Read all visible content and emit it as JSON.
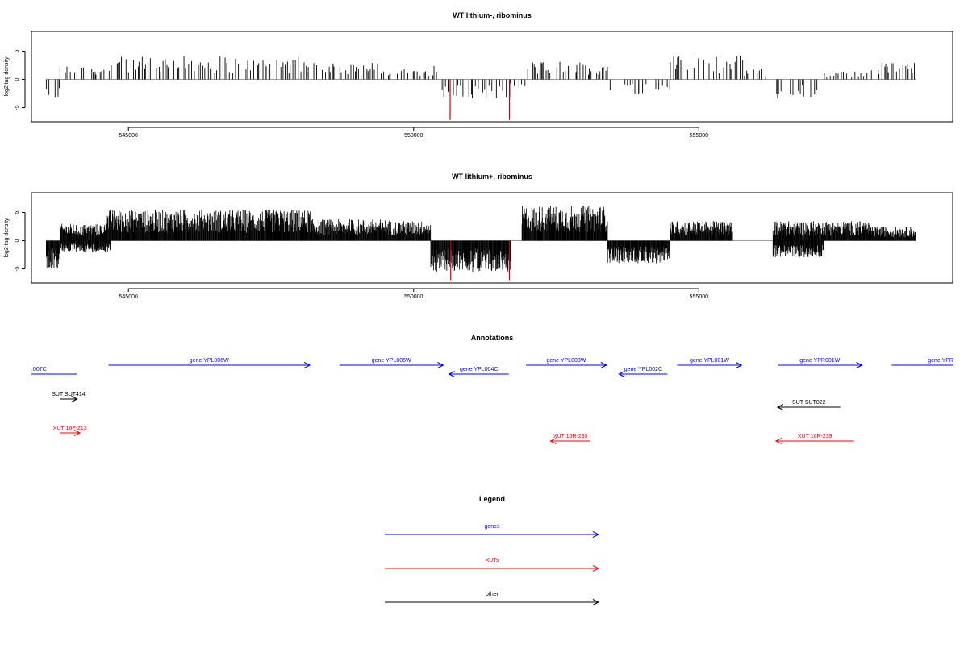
{
  "chart_data": [
    {
      "type": "bar",
      "title": "WT lithium-, ribominus",
      "ylabel": "log2 tag density",
      "xlim": [
        543300,
        559450
      ],
      "ylim": [
        -7.5,
        8.5
      ],
      "x_ticks": [
        545000,
        550000,
        555000
      ],
      "x_tick_labels": [
        "545000",
        "550000",
        "555000"
      ],
      "y_ticks": [
        -5,
        0,
        5
      ],
      "y_tick_labels": [
        "-5",
        "0",
        "5"
      ],
      "baseline": 0,
      "grid": false,
      "bar_color": "#000000",
      "highlight_color": "#cc0000",
      "density": "sparse",
      "segments": [
        {
          "start": 543560,
          "end": 543800,
          "sign": -1,
          "max": 3.6
        },
        {
          "start": 543800,
          "end": 544700,
          "sign": 1,
          "max": 2.4
        },
        {
          "start": 544700,
          "end": 545400,
          "sign": 1,
          "max": 4.0
        },
        {
          "start": 545400,
          "end": 547000,
          "sign": 1,
          "max": 4.2
        },
        {
          "start": 547000,
          "end": 548300,
          "sign": 1,
          "max": 4.0
        },
        {
          "start": 548300,
          "end": 549500,
          "sign": 1,
          "max": 3.0
        },
        {
          "start": 549500,
          "end": 550500,
          "sign": 1,
          "max": 2.4
        },
        {
          "start": 550500,
          "end": 551700,
          "sign": -1,
          "max": 3.3
        },
        {
          "start": 551700,
          "end": 552000,
          "sign": -1,
          "max": 1.5
        },
        {
          "start": 552000,
          "end": 553400,
          "sign": 1,
          "max": 3.2
        },
        {
          "start": 553400,
          "end": 554500,
          "sign": -1,
          "max": 3.0
        },
        {
          "start": 554500,
          "end": 555800,
          "sign": 1,
          "max": 4.2
        },
        {
          "start": 555800,
          "end": 556200,
          "sign": 1,
          "max": 2.2
        },
        {
          "start": 556300,
          "end": 557100,
          "sign": -1,
          "max": 3.5
        },
        {
          "start": 557200,
          "end": 558000,
          "sign": 1,
          "max": 1.6
        },
        {
          "start": 558000,
          "end": 558800,
          "sign": 1,
          "max": 3.0
        }
      ],
      "highlights": [
        {
          "x": 550640,
          "y": -7.2
        },
        {
          "x": 551680,
          "y": -7.2
        }
      ]
    },
    {
      "type": "bar",
      "title": "WT lithium+, ribominus",
      "ylabel": "log2 tag density",
      "xlim": [
        543300,
        559450
      ],
      "ylim": [
        -7.5,
        8.5
      ],
      "x_ticks": [
        545000,
        550000,
        555000
      ],
      "x_tick_labels": [
        "545000",
        "550000",
        "555000"
      ],
      "y_ticks": [
        -5,
        0,
        5
      ],
      "y_tick_labels": [
        "-5",
        "0",
        "5"
      ],
      "baseline": 0,
      "grid": false,
      "bar_color": "#000000",
      "highlight_color": "#cc0000",
      "density": "dense",
      "segments": [
        {
          "start": 543560,
          "end": 543800,
          "sign": -1,
          "max": 5.0
        },
        {
          "start": 543800,
          "end": 544700,
          "sign": -1,
          "max": 2.0
        },
        {
          "start": 543800,
          "end": 544600,
          "sign": 1,
          "max": 3.0
        },
        {
          "start": 544600,
          "end": 546500,
          "sign": 1,
          "max": 5.5
        },
        {
          "start": 546500,
          "end": 548200,
          "sign": 1,
          "max": 5.5
        },
        {
          "start": 548200,
          "end": 549600,
          "sign": 1,
          "max": 3.8
        },
        {
          "start": 549600,
          "end": 550300,
          "sign": 1,
          "max": 3.5
        },
        {
          "start": 550300,
          "end": 551700,
          "sign": -1,
          "max": 5.5
        },
        {
          "start": 551900,
          "end": 553400,
          "sign": 1,
          "max": 6.2
        },
        {
          "start": 553400,
          "end": 554500,
          "sign": -1,
          "max": 4.0
        },
        {
          "start": 554500,
          "end": 555600,
          "sign": 1,
          "max": 3.5
        },
        {
          "start": 556300,
          "end": 557200,
          "sign": -1,
          "max": 3.0
        },
        {
          "start": 556300,
          "end": 558000,
          "sign": 1,
          "max": 3.5
        },
        {
          "start": 558000,
          "end": 558800,
          "sign": 1,
          "max": 2.5
        }
      ],
      "highlights": [
        {
          "x": 550650,
          "y": -7.0
        },
        {
          "x": 551680,
          "y": -7.0
        }
      ]
    }
  ],
  "annotations": {
    "title": "Annotations",
    "features": [
      {
        "label": ".007C",
        "kind": "gene",
        "start": 543300,
        "end": 544100,
        "strand": "-",
        "row": 1
      },
      {
        "label": "gene YPL006W",
        "kind": "gene",
        "start": 544650,
        "end": 548180,
        "strand": "+",
        "row": 0
      },
      {
        "label": "gene YPL005W",
        "kind": "gene",
        "start": 548700,
        "end": 550520,
        "strand": "+",
        "row": 0
      },
      {
        "label": "gene YPL004C",
        "kind": "gene",
        "start": 550620,
        "end": 551670,
        "strand": "-",
        "row": 1
      },
      {
        "label": "gene YPL003W",
        "kind": "gene",
        "start": 551970,
        "end": 553380,
        "strand": "+",
        "row": 0
      },
      {
        "label": "gene YPL002C",
        "kind": "gene",
        "start": 553600,
        "end": 554450,
        "strand": "-",
        "row": 1
      },
      {
        "label": "gene YPL001W",
        "kind": "gene",
        "start": 554620,
        "end": 555750,
        "strand": "+",
        "row": 0
      },
      {
        "label": "gene YPR001W",
        "kind": "gene",
        "start": 556380,
        "end": 557860,
        "strand": "+",
        "row": 0
      },
      {
        "label": "gene YPR",
        "kind": "gene",
        "start": 558380,
        "end": 559450,
        "strand": "+",
        "row": 0
      },
      {
        "label": "SUT SUT414",
        "kind": "other",
        "start": 543800,
        "end": 544100,
        "strand": "+",
        "row": 2
      },
      {
        "label": "SUT SUT822",
        "kind": "other",
        "start": 556380,
        "end": 557480,
        "strand": "-",
        "row": 3
      },
      {
        "label": "XUT 16F-213",
        "kind": "xut",
        "start": 543800,
        "end": 544150,
        "strand": "+",
        "row": 4
      },
      {
        "label": "XUT 16R-235",
        "kind": "xut",
        "start": 552400,
        "end": 553100,
        "strand": "-",
        "row": 5
      },
      {
        "label": "XUT 16R-239",
        "kind": "xut",
        "start": 556350,
        "end": 557720,
        "strand": "-",
        "row": 5
      }
    ]
  },
  "legend": {
    "title": "Legend",
    "items": [
      {
        "label": "genes",
        "color": "#0000ff"
      },
      {
        "label": "XUTs",
        "color": "#ff0000"
      },
      {
        "label": "other",
        "color": "#000000"
      }
    ]
  },
  "colors": {
    "gene": "#0000ff",
    "xut": "#ff0000",
    "other": "#000000",
    "axis": "#000000",
    "baseline": "#999999"
  }
}
